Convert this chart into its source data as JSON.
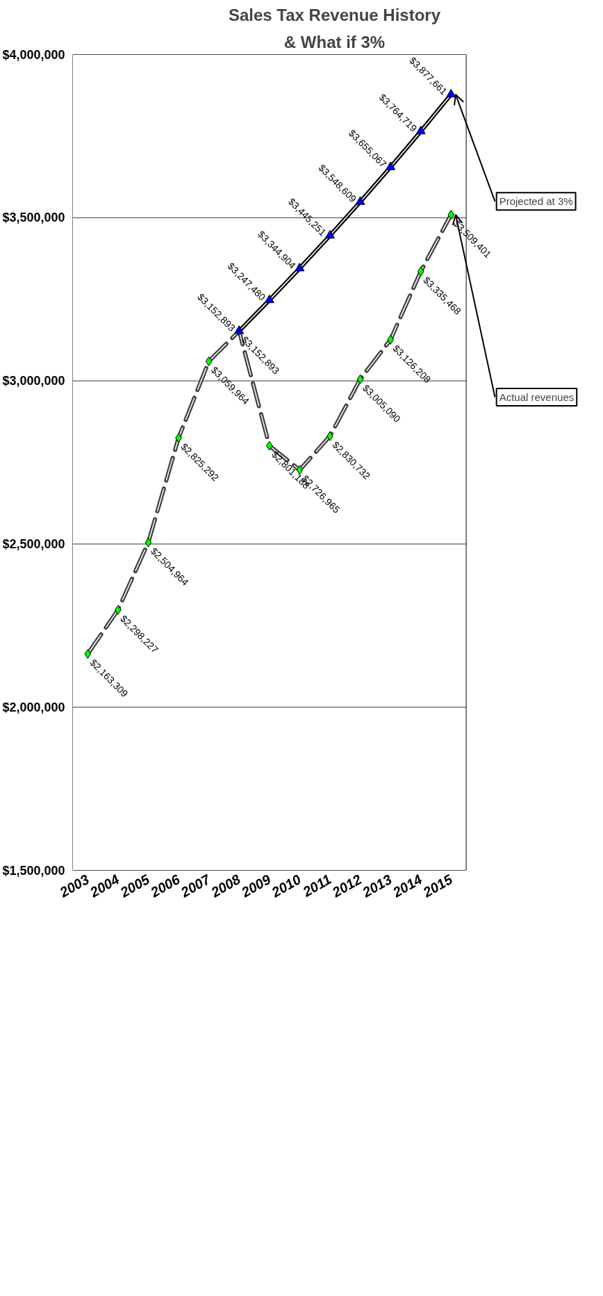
{
  "chart_data": {
    "type": "line",
    "title": "Sales Tax Revenue History",
    "subtitle": "& What if 3%",
    "categories": [
      "2003",
      "2004",
      "2005",
      "2006",
      "2007",
      "2008",
      "2009",
      "2010",
      "2011",
      "2012",
      "2013",
      "2014",
      "2015"
    ],
    "series": [
      {
        "color": "#00ff00",
        "marker": "diamond",
        "line_style": "dashed",
        "values": [
          2163309,
          2298227,
          2504964,
          2825292,
          3059964,
          3152893,
          2801188,
          2726965,
          2830732,
          3005090,
          3126208,
          3335468,
          3509401
        ],
        "value_labels": [
          "$2,163,309",
          "$2,298,227",
          "$2,504,964",
          "$2,825,292",
          "$3,059,964",
          "$3,152,893",
          "$2,801,188",
          "$2,726,965",
          "$2,830,732",
          "$3,005,090",
          "$3,126,208",
          "$3,335,468",
          "$3,509,401"
        ]
      },
      {
        "color": "#0000ff",
        "marker": "triangle",
        "line_style": "solid",
        "values": [
          null,
          null,
          null,
          null,
          null,
          3152893,
          3247480,
          3344904,
          3445251,
          3548609,
          3655067,
          3764719,
          3877661
        ],
        "value_labels": [
          null,
          null,
          null,
          null,
          null,
          "$3,152,893",
          "$3,247,480",
          "$3,344,904",
          "$3,445,251",
          "$3,548,609",
          "$3,655,067",
          "$3,764,719",
          "$3,877,661"
        ]
      }
    ],
    "ylim": [
      1500000,
      4000000
    ],
    "yticks": [
      {
        "value": 1500000,
        "label": "$1,500,000"
      },
      {
        "value": 2000000,
        "label": "$2,000,000"
      },
      {
        "value": 2500000,
        "label": "$2,500,000"
      },
      {
        "value": 3000000,
        "label": "$3,000,000"
      },
      {
        "value": 3500000,
        "label": "$3,500,000"
      },
      {
        "value": 4000000,
        "label": "$4,000,000"
      }
    ],
    "grid": "y",
    "annotations": [
      {
        "text": "Projected at 3%",
        "x": "2015",
        "y": 3877661
      },
      {
        "text": "Actual revenues",
        "x": "2015",
        "y": 3509401
      }
    ]
  }
}
